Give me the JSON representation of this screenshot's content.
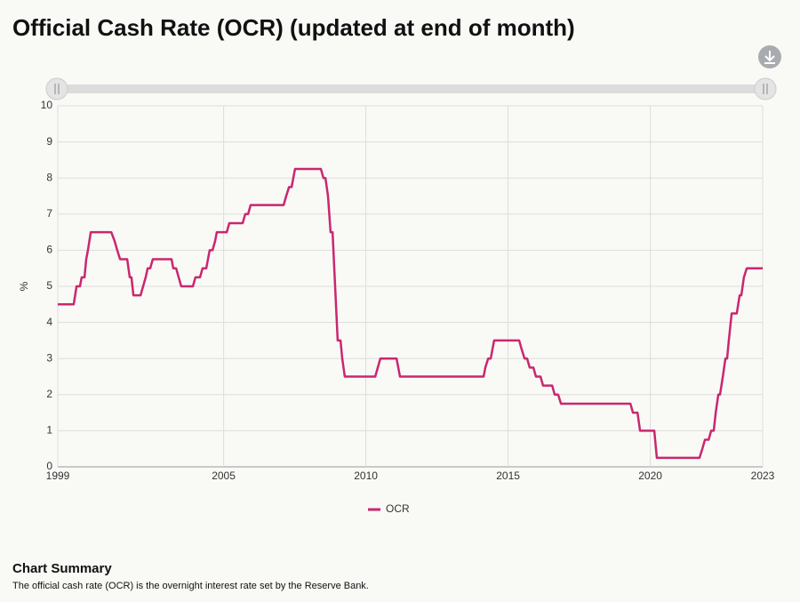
{
  "chart_data": {
    "type": "line",
    "title": "Official Cash Rate (OCR) (updated at end of month)",
    "ylabel": "%",
    "xlim": [
      1999.17,
      2023.95
    ],
    "ylim": [
      0,
      10
    ],
    "yticks": [
      0,
      1,
      2,
      3,
      4,
      5,
      6,
      7,
      8,
      9,
      10
    ],
    "xticks": [
      {
        "value": 1999.17,
        "label": "1999"
      },
      2005,
      2010,
      2015,
      2020,
      {
        "value": 2023.95,
        "label": "2023"
      }
    ],
    "grid": true,
    "x": [
      1999.17,
      1999.73,
      1999.83,
      1999.95,
      2000.01,
      2000.11,
      2000.17,
      2000.23,
      2000.33,
      2001.05,
      2001.17,
      2001.26,
      2001.36,
      2001.61,
      2001.7,
      2001.76,
      2001.83,
      2002.08,
      2002.17,
      2002.26,
      2002.33,
      2002.42,
      2002.51,
      2003.17,
      2003.23,
      2003.33,
      2003.42,
      2003.51,
      2003.92,
      2004.01,
      2004.17,
      2004.26,
      2004.39,
      2004.45,
      2004.51,
      2004.61,
      2004.7,
      2004.76,
      2005.11,
      2005.2,
      2005.67,
      2005.76,
      2005.86,
      2005.95,
      2007.11,
      2007.2,
      2007.3,
      2007.39,
      2007.51,
      2008.42,
      2008.51,
      2008.58,
      2008.67,
      2008.76,
      2008.83,
      2008.92,
      2009.01,
      2009.11,
      2009.17,
      2009.26,
      2010.33,
      2010.42,
      2010.51,
      2011.08,
      2011.2,
      2014.14,
      2014.2,
      2014.3,
      2014.39,
      2014.45,
      2014.51,
      2015.39,
      2015.48,
      2015.58,
      2015.67,
      2015.76,
      2015.89,
      2015.98,
      2016.14,
      2016.23,
      2016.55,
      2016.64,
      2016.76,
      2016.86,
      2019.3,
      2019.39,
      2019.55,
      2019.64,
      2020.14,
      2020.23,
      2021.73,
      2021.83,
      2021.92,
      2022.05,
      2022.14,
      2022.23,
      2022.3,
      2022.39,
      2022.45,
      2022.55,
      2022.64,
      2022.7,
      2022.76,
      2022.86,
      2023.04,
      2023.14,
      2023.2,
      2023.29,
      2023.39,
      2023.95
    ],
    "series": [
      {
        "name": "OCR",
        "color": "#c9276e",
        "values": [
          4.5,
          4.5,
          5.0,
          5.0,
          5.25,
          5.25,
          5.75,
          6.0,
          6.5,
          6.5,
          6.25,
          6.0,
          5.75,
          5.75,
          5.25,
          5.25,
          4.75,
          4.75,
          5.0,
          5.25,
          5.5,
          5.5,
          5.75,
          5.75,
          5.5,
          5.5,
          5.25,
          5.0,
          5.0,
          5.25,
          5.25,
          5.5,
          5.5,
          5.75,
          6.0,
          6.0,
          6.25,
          6.5,
          6.5,
          6.75,
          6.75,
          7.0,
          7.0,
          7.25,
          7.25,
          7.5,
          7.75,
          7.75,
          8.25,
          8.25,
          8.0,
          8.0,
          7.5,
          6.5,
          6.5,
          5.0,
          3.5,
          3.5,
          3.0,
          2.5,
          2.5,
          2.75,
          3.0,
          3.0,
          2.5,
          2.5,
          2.75,
          3.0,
          3.0,
          3.25,
          3.5,
          3.5,
          3.25,
          3.0,
          3.0,
          2.75,
          2.75,
          2.5,
          2.5,
          2.25,
          2.25,
          2.0,
          2.0,
          1.75,
          1.75,
          1.5,
          1.5,
          1.0,
          1.0,
          0.25,
          0.25,
          0.5,
          0.75,
          0.75,
          1.0,
          1.0,
          1.5,
          2.0,
          2.0,
          2.5,
          3.0,
          3.0,
          3.5,
          4.25,
          4.25,
          4.75,
          4.75,
          5.25,
          5.5,
          5.5
        ]
      }
    ]
  },
  "summary": {
    "heading": "Chart Summary",
    "text": "The official cash rate (OCR) is the overnight interest rate set by the Reserve Bank."
  }
}
